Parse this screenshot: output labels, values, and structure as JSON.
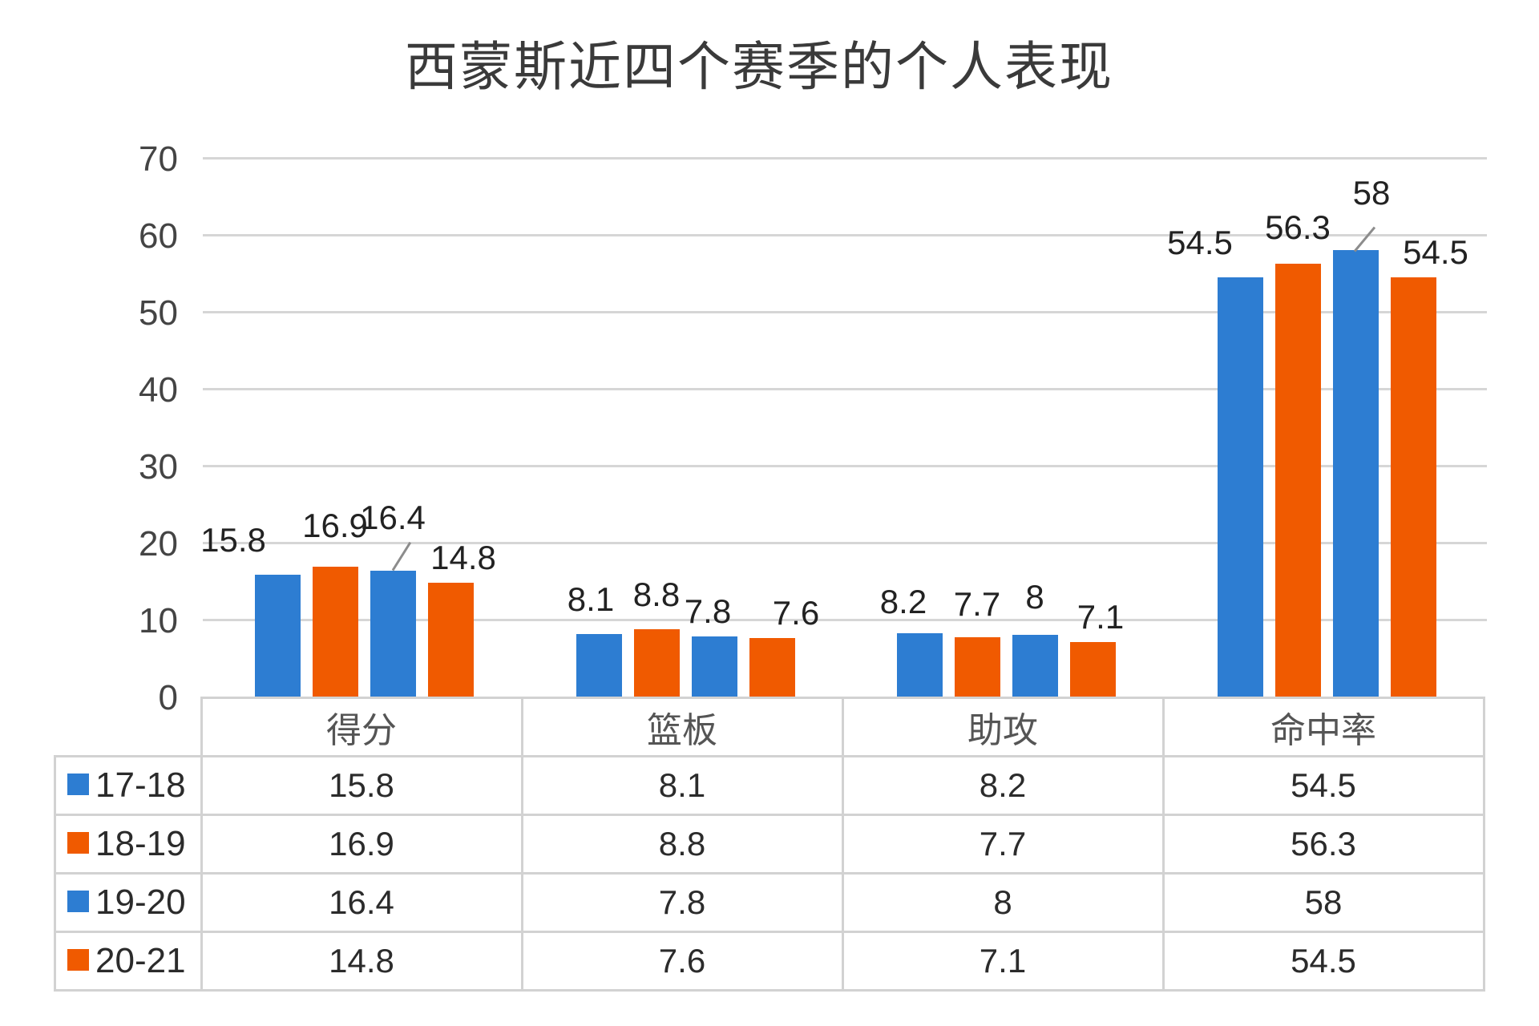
{
  "chart_data": {
    "type": "bar",
    "title": "西蒙斯近四个赛季的个人表现",
    "categories": [
      "得分",
      "篮板",
      "助攻",
      "命中率"
    ],
    "series": [
      {
        "name": "17-18",
        "color": "#2D7DD2",
        "values": [
          15.8,
          8.1,
          8.2,
          54.5
        ],
        "labels": [
          "15.8",
          "8.1",
          "8.2",
          "54.5"
        ]
      },
      {
        "name": "18-19",
        "color": "#F05A00",
        "values": [
          16.9,
          8.8,
          7.7,
          56.3
        ],
        "labels": [
          "16.9",
          "8.8",
          "7.7",
          "56.3"
        ]
      },
      {
        "name": "19-20",
        "color": "#2D7DD2",
        "values": [
          16.4,
          7.8,
          8,
          58
        ],
        "labels": [
          "16.4",
          "7.8",
          "8",
          "58"
        ]
      },
      {
        "name": "20-21",
        "color": "#F05A00",
        "values": [
          14.8,
          7.6,
          7.1,
          54.5
        ],
        "labels": [
          "14.8",
          "7.6",
          "7.1",
          "54.5"
        ]
      }
    ],
    "xlabel": "",
    "ylabel": "",
    "ylim": [
      0,
      70
    ],
    "yticks": [
      "0",
      "10",
      "20",
      "30",
      "40",
      "50",
      "60",
      "70"
    ],
    "grid": true,
    "legend_position": "data-table",
    "data_table": true
  }
}
